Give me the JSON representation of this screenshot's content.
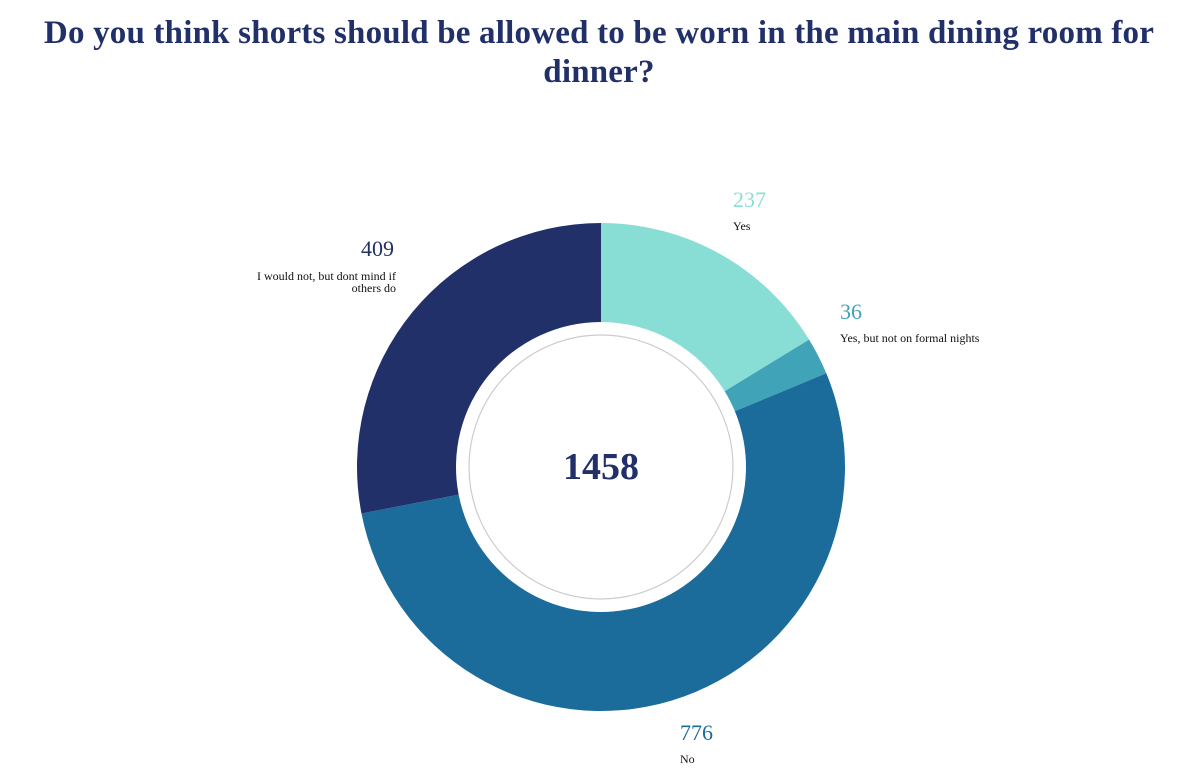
{
  "chart_data": {
    "type": "pie",
    "title": "Do you think shorts should be allowed to be worn in the main dining room for dinner?",
    "total": "1458",
    "slices": [
      {
        "label": "Yes",
        "value": 237,
        "color": "#88ded4",
        "value_color": "#88ded4"
      },
      {
        "label": "Yes, but not on formal nights",
        "value": 36,
        "color": "#40a3b8",
        "value_color": "#40a3b8"
      },
      {
        "label": "No",
        "value": 776,
        "color": "#1b6b9b",
        "value_color": "#1b6b9b"
      },
      {
        "label": "I would not, but dont mind if others do",
        "value": 409,
        "color": "#22306a",
        "value_color": "#22306a"
      }
    ],
    "legend": "none"
  }
}
